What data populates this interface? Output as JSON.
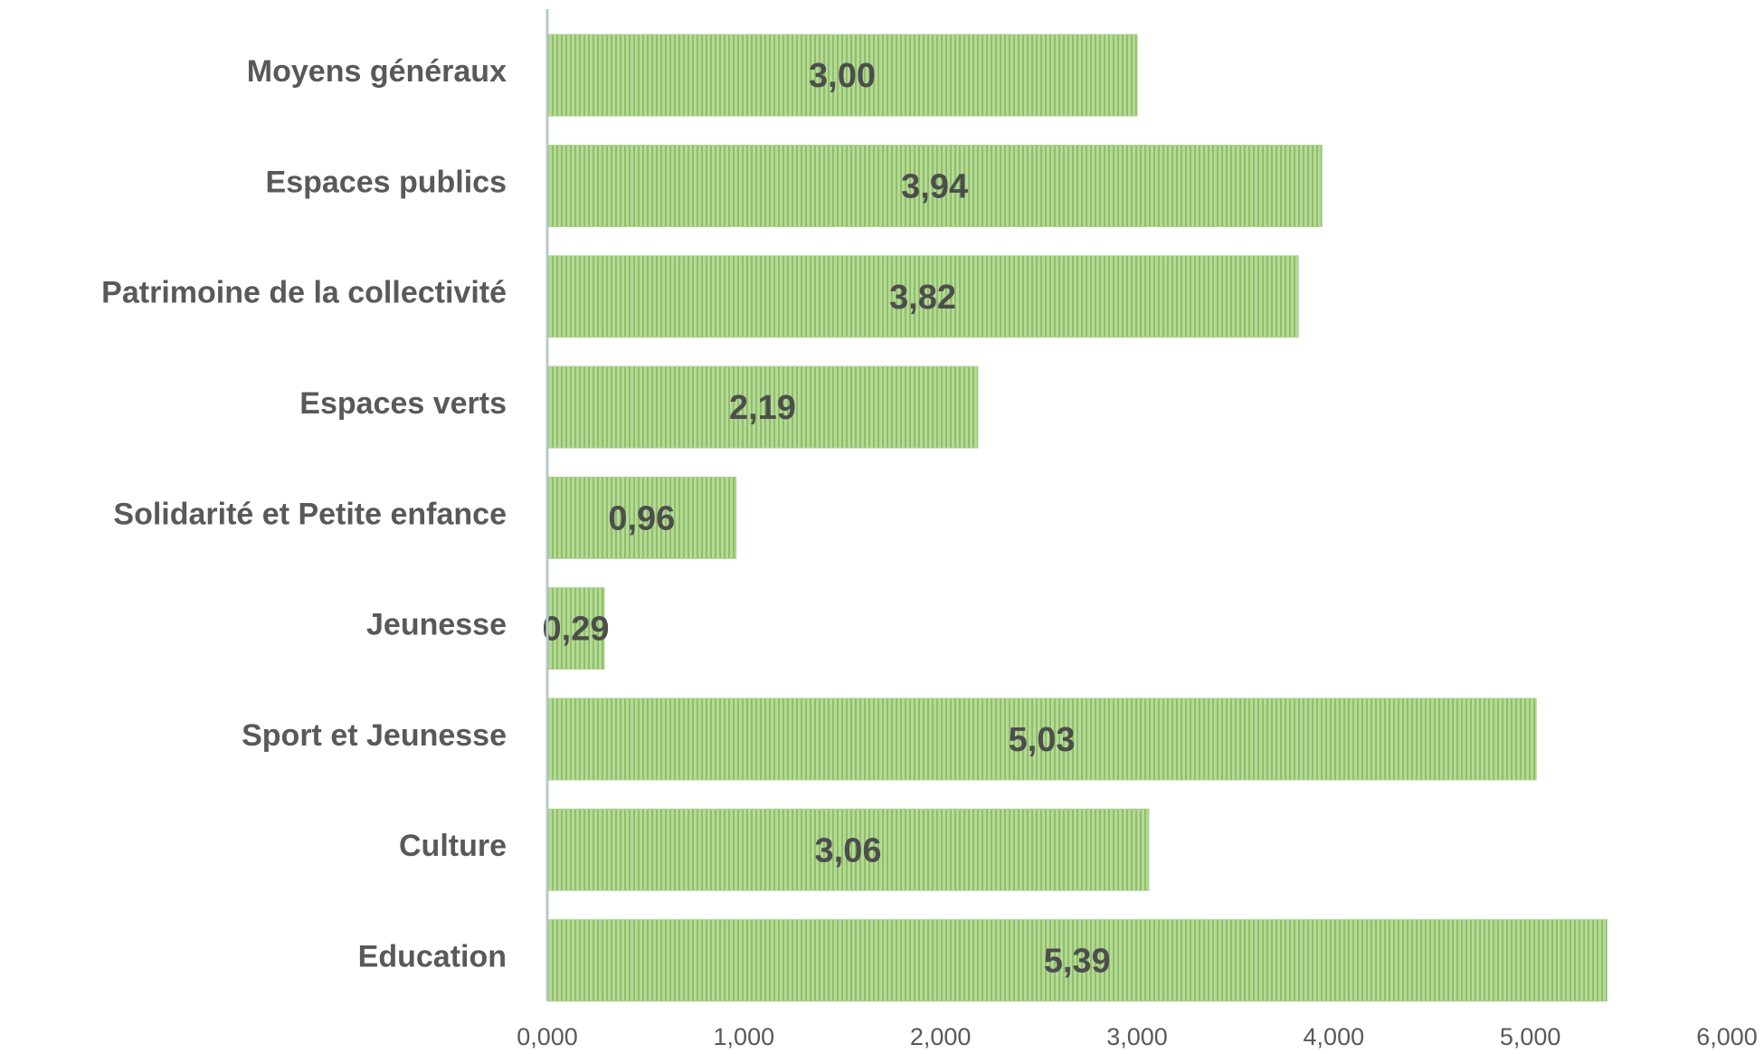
{
  "chart_data": {
    "type": "barh",
    "categories": [
      "Moyens généraux",
      "Espaces publics",
      "Patrimoine de la collectivité",
      "Espaces verts",
      "Solidarité et Petite enfance",
      "Jeunesse",
      "Sport et Jeunesse",
      "Culture",
      "Education"
    ],
    "values": [
      3.0,
      3.94,
      3.82,
      2.19,
      0.96,
      0.29,
      5.03,
      3.06,
      5.39
    ],
    "value_labels": [
      "3,00",
      "3,94",
      "3,82",
      "2,19",
      "0,96",
      "0,29",
      "5,03",
      "3,06",
      "5,39"
    ],
    "color": "#a9d18e",
    "xlim": [
      0,
      6
    ],
    "xticks": [
      {
        "value": 0,
        "label": "0,000"
      },
      {
        "value": 1,
        "label": "1,000"
      },
      {
        "value": 2,
        "label": "2,000"
      },
      {
        "value": 3,
        "label": "3,000"
      },
      {
        "value": 4,
        "label": "4,000"
      },
      {
        "value": 5,
        "label": "5,000"
      },
      {
        "value": 6,
        "label": "6,000"
      }
    ],
    "grid": false
  }
}
